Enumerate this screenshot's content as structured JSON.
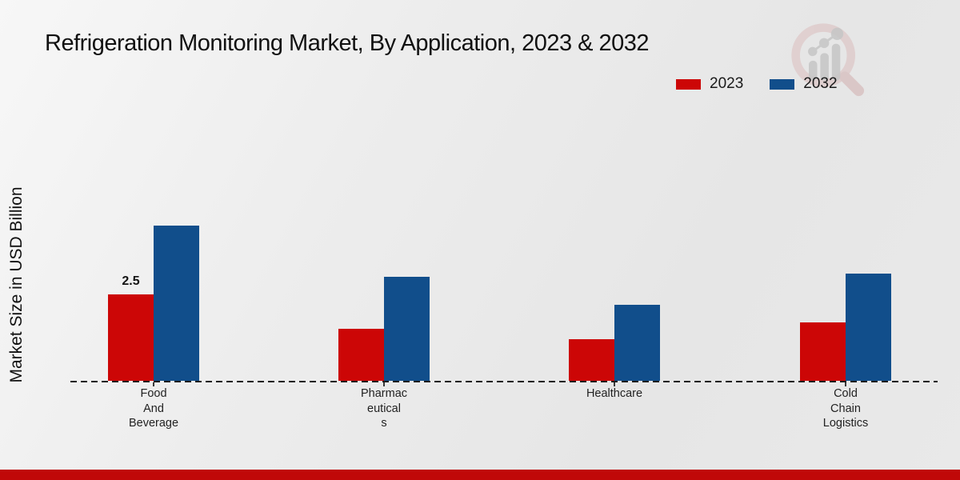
{
  "title": "Refrigeration Monitoring Market, By Application, 2023 & 2032",
  "ylabel": "Market Size in USD Billion",
  "legend": [
    {
      "label": "2023",
      "color": "#cc0606"
    },
    {
      "label": "2032",
      "color": "#114e8b"
    }
  ],
  "chart_data": {
    "type": "bar",
    "title": "Refrigeration Monitoring Market, By Application, 2023 & 2032",
    "xlabel": "",
    "ylabel": "Market Size in USD Billion",
    "categories": [
      "Food And Beverage",
      "Pharmaceuticals",
      "Healthcare",
      "Cold Chain Logistics"
    ],
    "category_label_lines": [
      [
        "Food",
        "And",
        "Beverage"
      ],
      [
        "Pharmac",
        "eutical",
        "s"
      ],
      [
        "Healthcare"
      ],
      [
        "Cold",
        "Chain",
        "Logistics"
      ]
    ],
    "series": [
      {
        "name": "2023",
        "color": "#cc0606",
        "values": [
          2.5,
          1.5,
          1.2,
          1.7
        ],
        "labels": [
          "2.5",
          "",
          "",
          ""
        ]
      },
      {
        "name": "2032",
        "color": "#114e8b",
        "values": [
          4.5,
          3.0,
          2.2,
          3.1
        ],
        "labels": [
          "",
          "",
          "",
          ""
        ]
      }
    ],
    "ylim": [
      0,
      5
    ],
    "grid": false,
    "axis_style": "dashed-baseline-only",
    "legend_position": "top-right"
  },
  "watermark": {
    "icon": "magnifier-bar-chart-logo",
    "ring_color": "#d9b9b9",
    "glyph_color": "#c6c6c6"
  },
  "footer": {
    "color": "#c00808"
  }
}
